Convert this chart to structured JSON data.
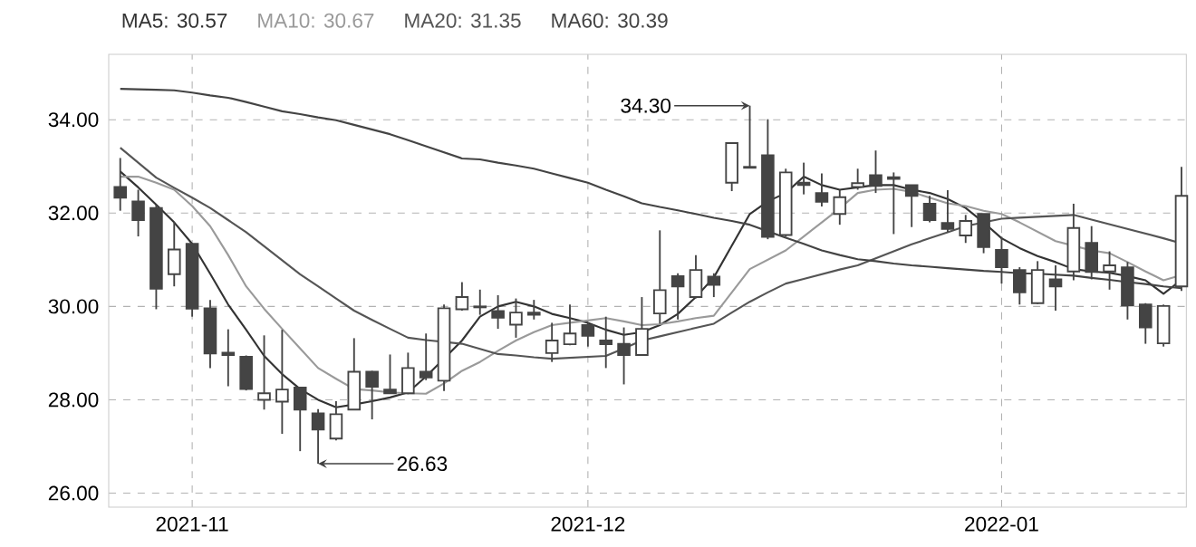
{
  "chart_data": {
    "type": "candlestick",
    "categories": [
      null,
      null,
      null,
      null,
      "2021-11",
      null,
      null,
      null,
      null,
      null,
      null,
      null,
      null,
      null,
      null,
      null,
      null,
      null,
      null,
      null,
      null,
      null,
      null,
      null,
      null,
      null,
      "2021-12",
      null,
      null,
      null,
      null,
      null,
      null,
      null,
      null,
      null,
      null,
      null,
      null,
      null,
      null,
      null,
      null,
      null,
      null,
      null,
      null,
      null,
      null,
      "2022-01",
      null,
      null,
      null,
      null,
      null,
      null,
      null,
      null,
      null,
      null
    ],
    "ohlc": [
      [
        32.56,
        33.18,
        32.05,
        32.33
      ],
      [
        32.25,
        32.5,
        31.5,
        31.85
      ],
      [
        32.11,
        32.18,
        29.94,
        30.38
      ],
      [
        30.69,
        31.81,
        30.43,
        31.22
      ],
      [
        31.34,
        31.34,
        29.78,
        29.95
      ],
      [
        29.96,
        30.14,
        28.68,
        28.99
      ],
      [
        29.01,
        29.51,
        28.29,
        28.96
      ],
      [
        28.92,
        28.95,
        28.2,
        28.23
      ],
      [
        28.0,
        29.38,
        27.79,
        28.14
      ],
      [
        27.96,
        29.5,
        27.27,
        28.22
      ],
      [
        28.26,
        28.28,
        26.9,
        27.79
      ],
      [
        27.71,
        27.8,
        26.63,
        27.36
      ],
      [
        27.17,
        27.97,
        27.13,
        27.69
      ],
      [
        27.79,
        29.32,
        27.79,
        28.6
      ],
      [
        28.6,
        28.62,
        27.58,
        28.28
      ],
      [
        28.22,
        28.97,
        28.13,
        28.14
      ],
      [
        28.14,
        29.01,
        28.12,
        28.68
      ],
      [
        28.6,
        29.42,
        28.42,
        28.48
      ],
      [
        28.41,
        30.04,
        28.19,
        29.96
      ],
      [
        29.94,
        30.52,
        29.91,
        30.2
      ],
      [
        30.0,
        30.36,
        29.82,
        29.98
      ],
      [
        29.9,
        30.24,
        29.52,
        29.76
      ],
      [
        29.61,
        30.17,
        29.33,
        29.87
      ],
      [
        29.87,
        30.14,
        29.72,
        29.82
      ],
      [
        29.0,
        29.65,
        28.81,
        29.27
      ],
      [
        29.19,
        30.04,
        29.17,
        29.42
      ],
      [
        29.6,
        29.65,
        29.14,
        29.37
      ],
      [
        29.27,
        29.78,
        28.68,
        29.19
      ],
      [
        29.2,
        29.55,
        28.33,
        28.96
      ],
      [
        28.96,
        30.2,
        28.94,
        29.52
      ],
      [
        29.85,
        31.63,
        29.63,
        30.35
      ],
      [
        30.65,
        30.71,
        29.72,
        30.43
      ],
      [
        30.2,
        31.1,
        30.17,
        30.78
      ],
      [
        30.64,
        30.71,
        30.2,
        30.46
      ],
      [
        32.65,
        33.5,
        32.47,
        33.5
      ],
      [
        32.99,
        34.3,
        32.97,
        32.97
      ],
      [
        33.24,
        34.01,
        31.44,
        31.49
      ],
      [
        31.53,
        32.95,
        31.49,
        32.87
      ],
      [
        32.65,
        33.08,
        32.4,
        32.6
      ],
      [
        32.43,
        32.85,
        32.14,
        32.24
      ],
      [
        31.98,
        32.5,
        31.75,
        32.34
      ],
      [
        32.56,
        32.95,
        32.5,
        32.64
      ],
      [
        32.81,
        33.34,
        32.43,
        32.58
      ],
      [
        32.77,
        32.87,
        31.55,
        32.73
      ],
      [
        32.6,
        32.6,
        31.7,
        32.37
      ],
      [
        32.2,
        32.37,
        31.8,
        31.85
      ],
      [
        31.79,
        32.49,
        31.59,
        31.66
      ],
      [
        31.52,
        31.96,
        31.36,
        31.83
      ],
      [
        31.98,
        31.98,
        31.14,
        31.27
      ],
      [
        31.21,
        31.49,
        30.49,
        30.84
      ],
      [
        30.78,
        30.84,
        30.04,
        30.3
      ],
      [
        30.07,
        30.97,
        30.05,
        30.78
      ],
      [
        30.58,
        30.88,
        29.91,
        30.43
      ],
      [
        30.75,
        32.2,
        30.56,
        31.68
      ],
      [
        31.36,
        31.72,
        30.58,
        30.74
      ],
      [
        30.75,
        31.18,
        30.36,
        30.88
      ],
      [
        30.84,
        30.95,
        29.72,
        30.02
      ],
      [
        30.04,
        30.07,
        29.2,
        29.55
      ],
      [
        29.21,
        30.04,
        29.14,
        30.01
      ],
      [
        30.43,
        32.99,
        30.33,
        32.37
      ]
    ],
    "color": "#444444",
    "series": [
      {
        "name": "MA5: 30.57",
        "type": "line",
        "color": "#333333",
        "values": [
          32.89,
          32.55,
          32.18,
          31.8,
          31.34,
          30.7,
          30.04,
          29.5,
          28.94,
          28.55,
          28.23,
          28.0,
          27.84,
          27.9,
          27.97,
          28.05,
          28.16,
          28.5,
          28.88,
          29.27,
          29.78,
          30.0,
          30.1,
          30.0,
          29.84,
          29.75,
          29.65,
          29.5,
          29.39,
          29.45,
          29.6,
          29.84,
          30.2,
          30.62,
          31.3,
          31.98,
          32.25,
          32.43,
          32.78,
          32.6,
          32.5,
          32.55,
          32.6,
          32.6,
          32.5,
          32.43,
          32.3,
          32.11,
          31.8,
          31.46,
          31.25,
          31.08,
          30.95,
          30.8,
          30.75,
          30.72,
          30.65,
          30.56,
          30.27,
          30.57
        ]
      },
      {
        "name": "MA10: 30.67",
        "type": "line",
        "color": "#9a9a9a",
        "values": [
          32.78,
          32.78,
          32.65,
          32.5,
          32.15,
          31.72,
          31.1,
          30.43,
          29.95,
          29.52,
          29.1,
          28.68,
          28.45,
          28.23,
          28.2,
          28.16,
          28.14,
          28.13,
          28.35,
          28.62,
          28.81,
          29.05,
          29.27,
          29.45,
          29.6,
          29.65,
          29.7,
          29.75,
          29.68,
          29.6,
          29.62,
          29.68,
          29.75,
          29.8,
          30.3,
          30.8,
          31.0,
          31.2,
          31.5,
          31.8,
          32.1,
          32.43,
          32.5,
          32.52,
          32.45,
          32.33,
          32.21,
          32.15,
          32.05,
          31.98,
          31.8,
          31.6,
          31.4,
          31.3,
          31.2,
          31.14,
          30.95,
          30.75,
          30.56,
          30.67
        ]
      },
      {
        "name": "MA20: 31.35",
        "type": "line",
        "color": "#555555",
        "values": [
          33.4,
          33.08,
          32.76,
          32.54,
          32.33,
          32.11,
          31.85,
          31.59,
          31.29,
          30.99,
          30.69,
          30.43,
          30.17,
          29.91,
          29.71,
          29.52,
          29.33,
          29.28,
          29.24,
          29.2,
          29.09,
          28.98,
          28.95,
          28.91,
          28.88,
          28.9,
          28.92,
          28.94,
          29.1,
          29.27,
          29.36,
          29.45,
          29.54,
          29.63,
          29.87,
          30.1,
          30.3,
          30.49,
          30.59,
          30.69,
          30.79,
          30.88,
          31.03,
          31.18,
          31.33,
          31.46,
          31.59,
          31.72,
          31.8,
          31.88,
          31.9,
          31.92,
          31.94,
          31.96,
          31.86,
          31.76,
          31.66,
          31.56,
          31.46,
          31.35
        ]
      },
      {
        "name": "MA60: 30.39",
        "type": "line",
        "color": "#444444",
        "values": [
          34.66,
          34.65,
          34.64,
          34.63,
          34.58,
          34.52,
          34.47,
          34.38,
          34.28,
          34.18,
          34.12,
          34.05,
          33.99,
          33.89,
          33.79,
          33.69,
          33.56,
          33.43,
          33.3,
          33.17,
          33.15,
          33.08,
          33.02,
          32.95,
          32.85,
          32.75,
          32.65,
          32.5,
          32.36,
          32.21,
          32.13,
          32.06,
          31.98,
          31.9,
          31.83,
          31.75,
          31.61,
          31.47,
          31.34,
          31.2,
          31.1,
          31.01,
          30.97,
          30.92,
          30.88,
          30.85,
          30.82,
          30.79,
          30.76,
          30.74,
          30.71,
          30.7,
          30.68,
          30.66,
          30.61,
          30.57,
          30.52,
          30.48,
          30.43,
          30.39
        ]
      }
    ],
    "ylim": [
      25.7,
      35.4
    ],
    "yticks": [
      {
        "value": 26,
        "label": "26.00"
      },
      {
        "value": 28,
        "label": "28.00"
      },
      {
        "value": 30,
        "label": "30.00"
      },
      {
        "value": 32,
        "label": "32.00"
      },
      {
        "value": 34,
        "label": "34.00"
      }
    ],
    "grid": true,
    "legend": "top left",
    "annotations": [
      "34.30",
      "26.63"
    ]
  }
}
